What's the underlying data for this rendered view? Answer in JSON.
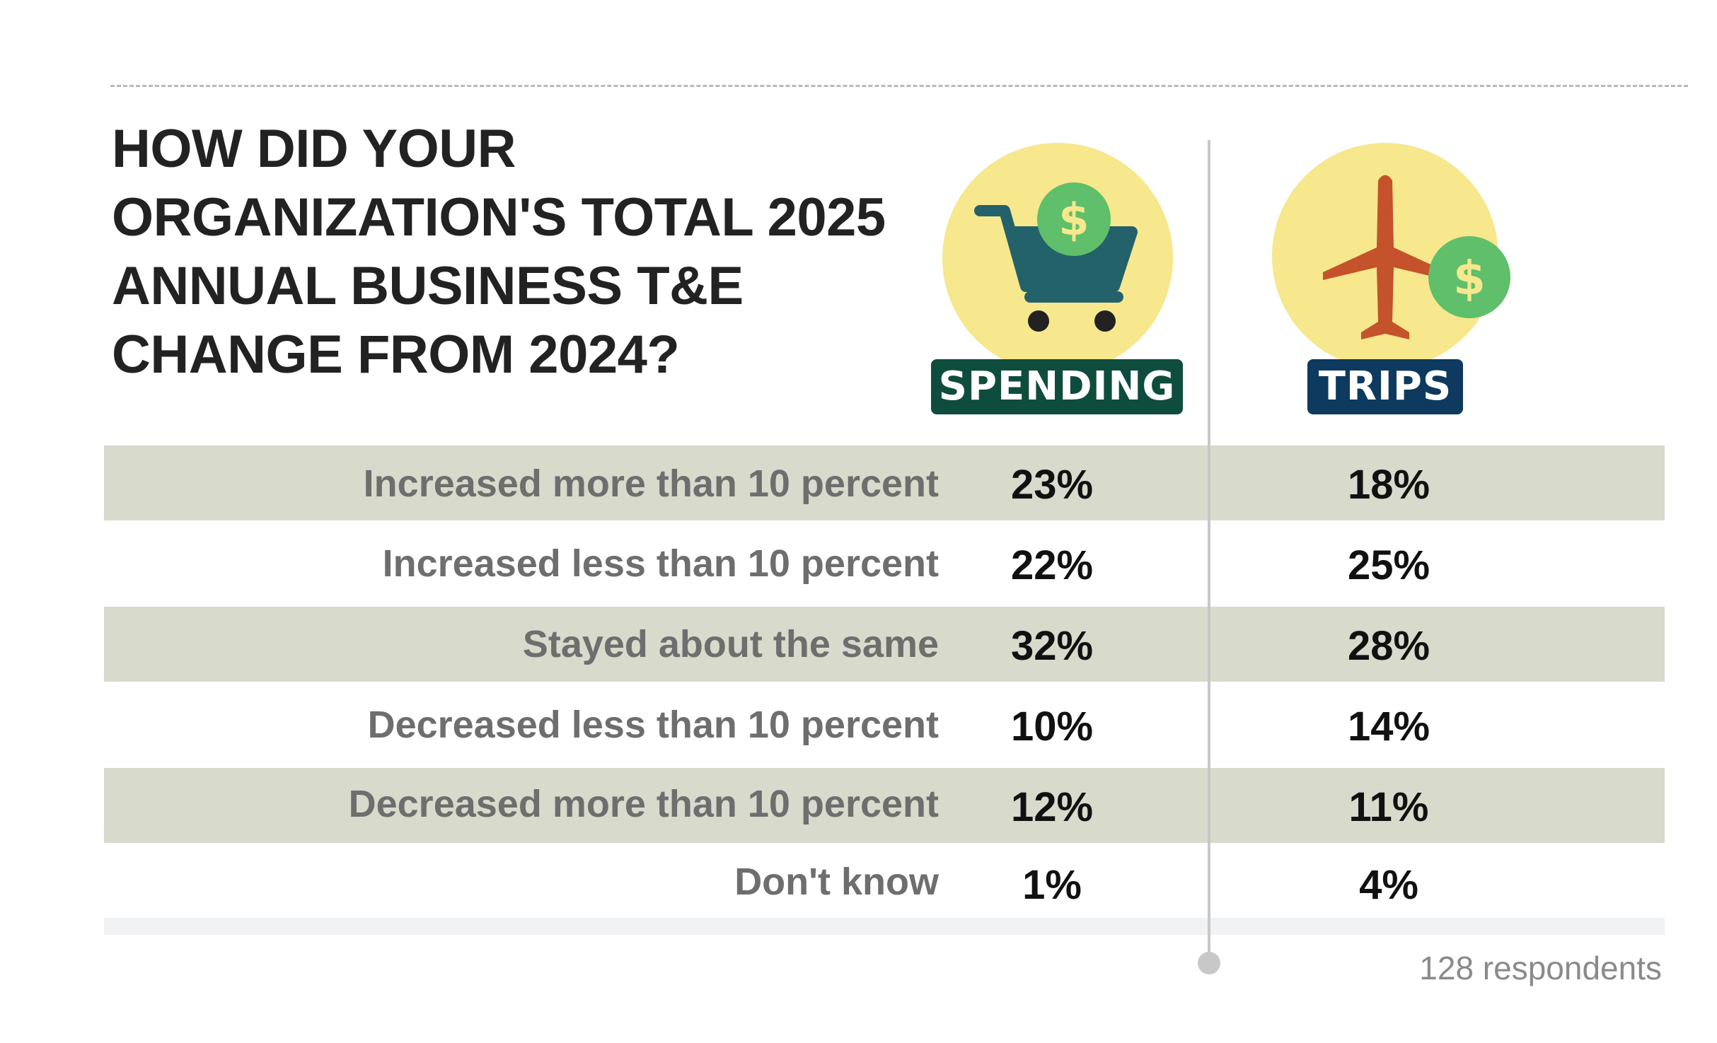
{
  "title": "HOW DID YOUR ORGANIZATION'S TOTAL 2025 ANNUAL BUSINESS T&E CHANGE FROM 2024?",
  "columns": [
    {
      "label": "SPENDING",
      "color": "#0e4d3d",
      "icon": "shopping-cart-dollar-icon"
    },
    {
      "label": "TRIPS",
      "color": "#0d3a5e",
      "icon": "airplane-dollar-icon"
    }
  ],
  "colors": {
    "icon_circle": "#f7e78d",
    "dollar_coin": "#5fbf6a",
    "cart": "#23626b",
    "plane": "#c4522b",
    "row_shade": "#d8dacc"
  },
  "chart_data": {
    "type": "table",
    "title": "HOW DID YOUR ORGANIZATION'S TOTAL 2025 ANNUAL BUSINESS T&E CHANGE FROM 2024?",
    "columns": [
      "SPENDING",
      "TRIPS"
    ],
    "rows": [
      {
        "label": "Increased more than 10 percent",
        "spending": "23%",
        "trips": "18%"
      },
      {
        "label": "Increased less than 10 percent",
        "spending": "22%",
        "trips": "25%"
      },
      {
        "label": "Stayed about the same",
        "spending": "32%",
        "trips": "28%"
      },
      {
        "label": "Decreased less than 10 percent",
        "spending": "10%",
        "trips": "14%"
      },
      {
        "label": "Decreased more than 10 percent",
        "spending": "12%",
        "trips": "11%"
      },
      {
        "label": "Don't know",
        "spending": "1%",
        "trips": "4%"
      }
    ],
    "footnote": "128 respondents"
  }
}
